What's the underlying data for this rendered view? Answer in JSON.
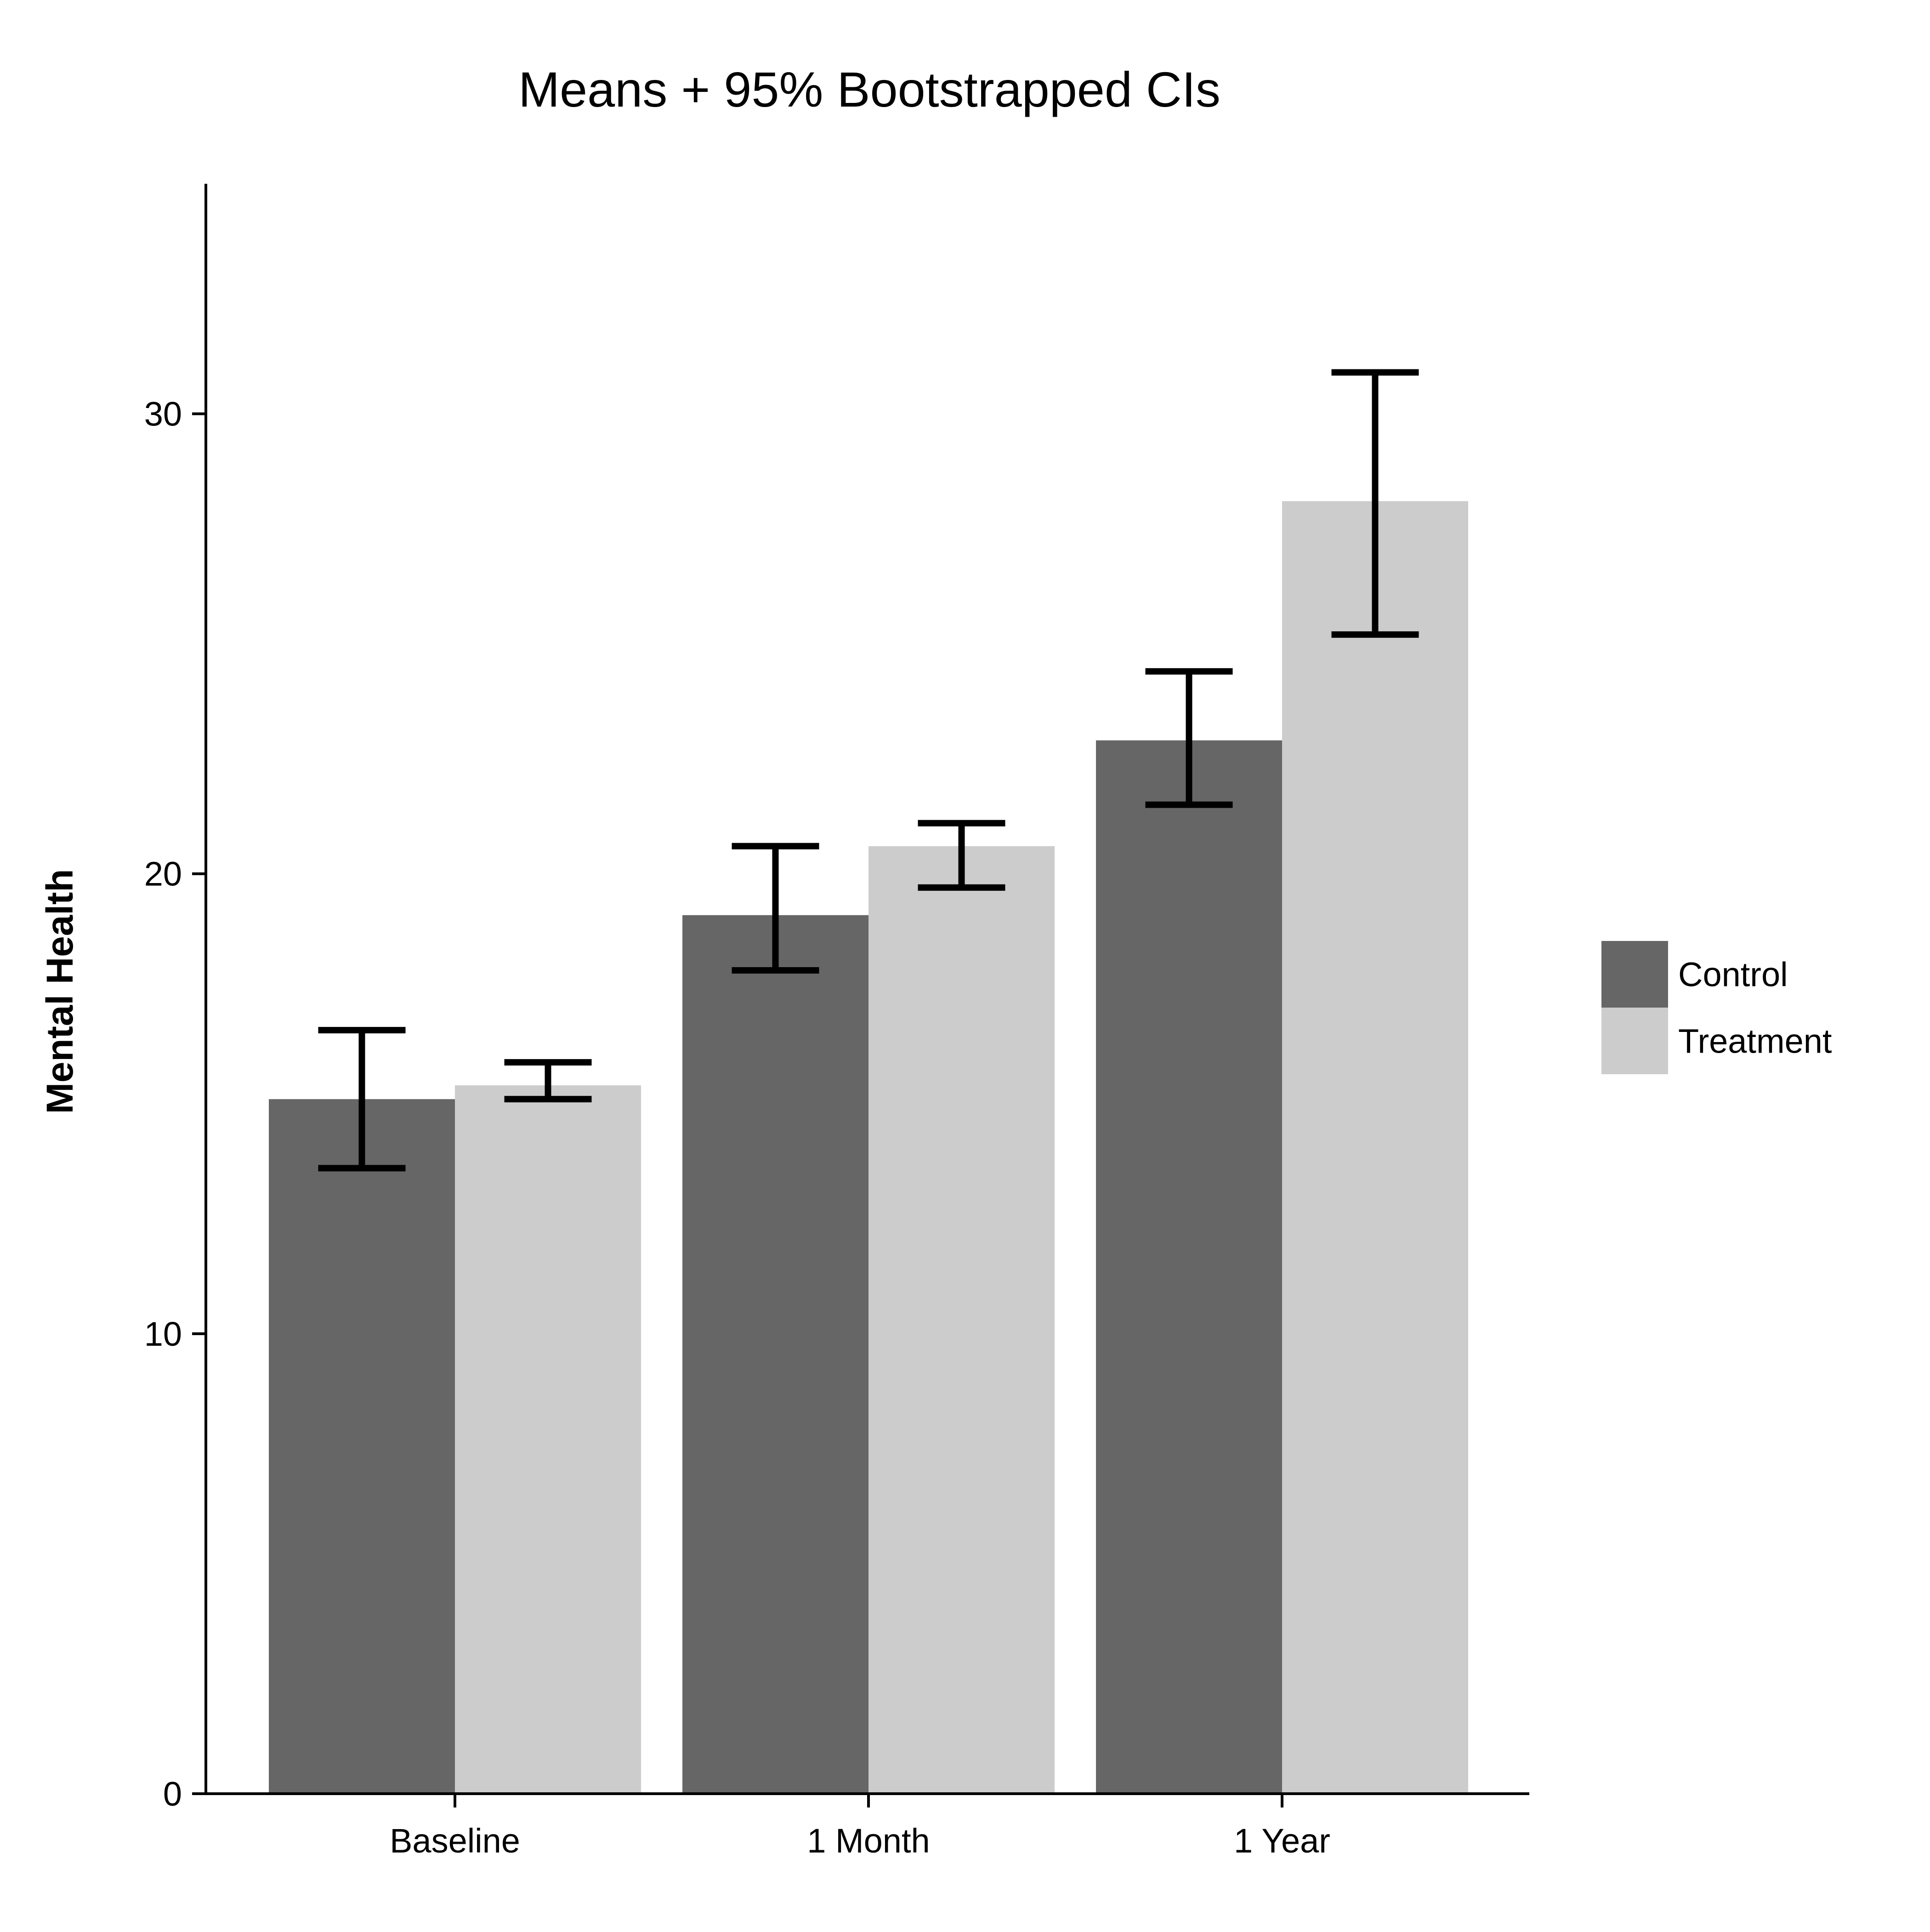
{
  "chart_data": {
    "type": "bar",
    "title": "Means + 95% Bootstrapped CIs",
    "xlabel": "",
    "ylabel": "Mental Health",
    "categories": [
      "Baseline",
      "1 Month",
      "1 Year"
    ],
    "ylim": [
      0,
      35
    ],
    "yticks": [
      0,
      10,
      20,
      30
    ],
    "series": [
      {
        "name": "Control",
        "color": "#666666",
        "values": [
          15.1,
          19.1,
          22.9
        ],
        "ci_low": [
          13.6,
          17.9,
          21.5
        ],
        "ci_high": [
          16.6,
          20.6,
          24.4
        ]
      },
      {
        "name": "Treatment",
        "color": "#cccccc",
        "values": [
          15.4,
          20.6,
          28.1
        ],
        "ci_low": [
          15.1,
          19.7,
          25.2
        ],
        "ci_high": [
          15.9,
          21.1,
          30.9
        ]
      }
    ],
    "error_bars": "95% bootstrapped CI",
    "grid": false,
    "legend_position": "right"
  }
}
